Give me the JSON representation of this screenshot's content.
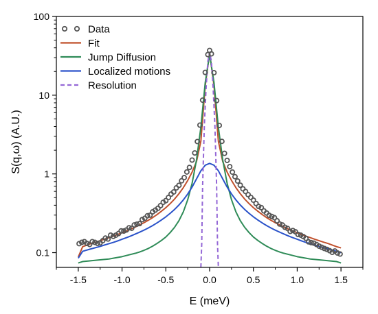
{
  "chart_data": {
    "type": "line",
    "title": "",
    "xlabel": "E (meV)",
    "ylabel": "S(q,ω) (A.U.)",
    "xlim": [
      -1.75,
      1.75
    ],
    "ylim": [
      0.065,
      100
    ],
    "yscale": "log",
    "grid": false,
    "legend_position": "top-left",
    "xticks": [
      -1.5,
      -1.0,
      -0.5,
      0.0,
      0.5,
      1.0,
      1.5
    ],
    "xtick_labels": [
      "-1.5",
      "-1.0",
      "-0.5",
      "0.0",
      "0.5",
      "1.0",
      "1.5"
    ],
    "yticks": [
      0.1,
      1,
      10,
      100
    ],
    "ytick_labels": [
      "0.1",
      "1",
      "10",
      "100"
    ],
    "series": [
      {
        "name": "Data",
        "kind": "markers",
        "color": "#555555",
        "x": [
          -1.49,
          -1.46,
          -1.43,
          -1.4,
          -1.37,
          -1.34,
          -1.31,
          -1.28,
          -1.25,
          -1.22,
          -1.19,
          -1.16,
          -1.13,
          -1.1,
          -1.07,
          -1.04,
          -1.01,
          -0.98,
          -0.95,
          -0.92,
          -0.89,
          -0.86,
          -0.83,
          -0.8,
          -0.77,
          -0.74,
          -0.71,
          -0.68,
          -0.65,
          -0.62,
          -0.59,
          -0.56,
          -0.53,
          -0.5,
          -0.47,
          -0.44,
          -0.41,
          -0.38,
          -0.35,
          -0.32,
          -0.29,
          -0.26,
          -0.23,
          -0.2,
          -0.17,
          -0.14,
          -0.11,
          -0.08,
          -0.05,
          -0.02,
          0.0,
          0.02,
          0.05,
          0.08,
          0.11,
          0.14,
          0.17,
          0.2,
          0.23,
          0.26,
          0.29,
          0.32,
          0.35,
          0.38,
          0.41,
          0.44,
          0.47,
          0.5,
          0.53,
          0.56,
          0.59,
          0.62,
          0.65,
          0.68,
          0.71,
          0.74,
          0.77,
          0.8,
          0.83,
          0.86,
          0.89,
          0.92,
          0.95,
          0.98,
          1.01,
          1.04,
          1.07,
          1.1,
          1.13,
          1.16,
          1.19,
          1.22,
          1.25,
          1.28,
          1.31,
          1.34,
          1.37,
          1.4,
          1.43,
          1.46,
          1.49
        ],
        "y": [
          0.13,
          0.135,
          0.138,
          0.131,
          0.127,
          0.138,
          0.135,
          0.131,
          0.133,
          0.142,
          0.153,
          0.149,
          0.167,
          0.161,
          0.167,
          0.175,
          0.189,
          0.188,
          0.194,
          0.207,
          0.204,
          0.225,
          0.23,
          0.234,
          0.263,
          0.273,
          0.294,
          0.299,
          0.33,
          0.347,
          0.366,
          0.396,
          0.436,
          0.458,
          0.502,
          0.554,
          0.59,
          0.665,
          0.716,
          0.818,
          0.898,
          1.059,
          1.209,
          1.5,
          1.846,
          2.577,
          4.167,
          8.65,
          19.46,
          32.81,
          37.0,
          33.5,
          19.3,
          8.55,
          4.129,
          2.591,
          1.826,
          1.485,
          1.237,
          1.055,
          0.922,
          0.812,
          0.719,
          0.647,
          0.598,
          0.545,
          0.504,
          0.464,
          0.421,
          0.386,
          0.373,
          0.339,
          0.319,
          0.298,
          0.288,
          0.278,
          0.254,
          0.231,
          0.225,
          0.21,
          0.203,
          0.186,
          0.191,
          0.184,
          0.17,
          0.167,
          0.16,
          0.152,
          0.137,
          0.134,
          0.132,
          0.127,
          0.121,
          0.117,
          0.113,
          0.11,
          0.106,
          0.101,
          0.105,
          0.099,
          0.096
        ]
      },
      {
        "name": "Fit",
        "kind": "line",
        "color": "#c0502c",
        "x": [
          -1.5,
          -1.45,
          -1.4,
          -1.35,
          -1.3,
          -1.25,
          -1.2,
          -1.15,
          -1.1,
          -1.05,
          -1.0,
          -0.95,
          -0.9,
          -0.85,
          -0.8,
          -0.75,
          -0.7,
          -0.65,
          -0.6,
          -0.55,
          -0.5,
          -0.45,
          -0.4,
          -0.35,
          -0.3,
          -0.25,
          -0.2,
          -0.15,
          -0.1,
          -0.05,
          0.0,
          0.05,
          0.1,
          0.15,
          0.2,
          0.25,
          0.3,
          0.35,
          0.4,
          0.45,
          0.5,
          0.55,
          0.6,
          0.65,
          0.7,
          0.75,
          0.8,
          0.85,
          0.9,
          0.95,
          1.0,
          1.05,
          1.1,
          1.15,
          1.2,
          1.25,
          1.3,
          1.35,
          1.4,
          1.45,
          1.5
        ],
        "y": [
          0.088,
          0.119,
          0.125,
          0.131,
          0.136,
          0.142,
          0.148,
          0.155,
          0.162,
          0.17,
          0.179,
          0.188,
          0.199,
          0.211,
          0.225,
          0.24,
          0.258,
          0.279,
          0.305,
          0.336,
          0.373,
          0.42,
          0.48,
          0.561,
          0.67,
          0.826,
          1.054,
          1.433,
          2.6,
          13.2,
          34.5,
          13.2,
          2.6,
          1.433,
          1.054,
          0.826,
          0.67,
          0.561,
          0.48,
          0.42,
          0.373,
          0.336,
          0.305,
          0.279,
          0.258,
          0.24,
          0.225,
          0.211,
          0.199,
          0.188,
          0.179,
          0.17,
          0.162,
          0.155,
          0.148,
          0.142,
          0.136,
          0.131,
          0.125,
          0.119,
          0.115
        ]
      },
      {
        "name": "Jump Diffusion",
        "kind": "line",
        "color": "#2e8b57",
        "x": [
          -1.5,
          -1.45,
          -1.4,
          -1.35,
          -1.3,
          -1.25,
          -1.2,
          -1.15,
          -1.1,
          -1.05,
          -1.0,
          -0.95,
          -0.9,
          -0.85,
          -0.8,
          -0.75,
          -0.7,
          -0.65,
          -0.6,
          -0.55,
          -0.5,
          -0.45,
          -0.4,
          -0.35,
          -0.3,
          -0.25,
          -0.2,
          -0.15,
          -0.1,
          -0.05,
          0.0,
          0.05,
          0.1,
          0.15,
          0.2,
          0.25,
          0.3,
          0.35,
          0.4,
          0.45,
          0.5,
          0.55,
          0.6,
          0.65,
          0.7,
          0.75,
          0.8,
          0.85,
          0.9,
          0.95,
          1.0,
          1.05,
          1.1,
          1.15,
          1.2,
          1.25,
          1.3,
          1.35,
          1.4,
          1.45,
          1.5
        ],
        "y": [
          0.074,
          0.077,
          0.078,
          0.079,
          0.08,
          0.081,
          0.082,
          0.083,
          0.085,
          0.087,
          0.089,
          0.092,
          0.095,
          0.098,
          0.102,
          0.107,
          0.113,
          0.121,
          0.131,
          0.143,
          0.158,
          0.18,
          0.21,
          0.255,
          0.33,
          0.47,
          0.76,
          1.5,
          3.9,
          14.5,
          33.0,
          14.5,
          3.9,
          1.5,
          0.76,
          0.47,
          0.33,
          0.255,
          0.21,
          0.18,
          0.158,
          0.143,
          0.131,
          0.121,
          0.113,
          0.107,
          0.102,
          0.098,
          0.095,
          0.092,
          0.089,
          0.087,
          0.085,
          0.083,
          0.082,
          0.081,
          0.08,
          0.079,
          0.078,
          0.077,
          0.074
        ]
      },
      {
        "name": "Localized motions",
        "kind": "line",
        "color": "#2a52c9",
        "x": [
          -1.5,
          -1.45,
          -1.4,
          -1.35,
          -1.3,
          -1.25,
          -1.2,
          -1.15,
          -1.1,
          -1.05,
          -1.0,
          -0.95,
          -0.9,
          -0.85,
          -0.8,
          -0.75,
          -0.7,
          -0.65,
          -0.6,
          -0.55,
          -0.5,
          -0.45,
          -0.4,
          -0.35,
          -0.3,
          -0.25,
          -0.2,
          -0.15,
          -0.1,
          -0.05,
          0.0,
          0.05,
          0.1,
          0.15,
          0.2,
          0.25,
          0.3,
          0.35,
          0.4,
          0.45,
          0.5,
          0.55,
          0.6,
          0.65,
          0.7,
          0.75,
          0.8,
          0.85,
          0.9,
          0.95,
          1.0,
          1.05,
          1.1,
          1.15,
          1.2,
          1.25,
          1.3,
          1.35,
          1.4,
          1.45,
          1.5
        ],
        "y": [
          0.085,
          0.104,
          0.108,
          0.112,
          0.116,
          0.12,
          0.125,
          0.13,
          0.135,
          0.141,
          0.148,
          0.155,
          0.163,
          0.172,
          0.182,
          0.193,
          0.206,
          0.221,
          0.239,
          0.26,
          0.285,
          0.316,
          0.354,
          0.403,
          0.468,
          0.556,
          0.681,
          0.863,
          1.097,
          1.29,
          1.36,
          1.29,
          1.097,
          0.863,
          0.681,
          0.556,
          0.468,
          0.403,
          0.354,
          0.316,
          0.285,
          0.26,
          0.239,
          0.221,
          0.206,
          0.193,
          0.182,
          0.172,
          0.163,
          0.155,
          0.148,
          0.141,
          0.135,
          0.13,
          0.125,
          0.12,
          0.116,
          0.112,
          0.108,
          0.104,
          0.1
        ]
      },
      {
        "name": "Resolution",
        "kind": "dashed",
        "color": "#9467d6",
        "x": [
          -0.1,
          -0.09,
          -0.08,
          -0.06,
          -0.04,
          -0.02,
          0.0,
          0.02,
          0.04,
          0.06,
          0.08,
          0.09,
          0.1
        ],
        "y": [
          0.065,
          0.13,
          0.7,
          4.2,
          12.5,
          27.0,
          35.0,
          27.0,
          12.5,
          4.2,
          0.7,
          0.13,
          0.065
        ]
      }
    ]
  }
}
